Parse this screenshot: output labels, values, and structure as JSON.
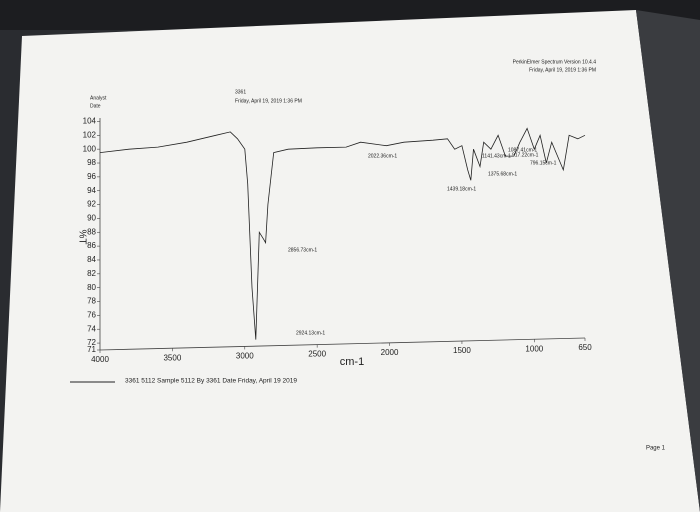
{
  "chart_data": {
    "type": "line",
    "header": [
      "PerkinElmer Spectrum Version 10.4.4",
      "Friday, April 19, 2019 1:36 PM"
    ],
    "analyst_label": "Analyst",
    "date_label": "Date",
    "analyst": "3361",
    "date": "Friday, April 19, 2019 1:36 PM",
    "ylabel": "%T",
    "xlabel": "cm-1",
    "footer": "Page 1",
    "x": [
      4000,
      3800,
      3600,
      3400,
      3200,
      3100,
      3050,
      3000,
      2980,
      2950,
      2924,
      2900,
      2870,
      2856,
      2840,
      2800,
      2700,
      2500,
      2300,
      2200,
      2022,
      1900,
      1700,
      1600,
      1550,
      1500,
      1460,
      1439,
      1420,
      1375,
      1350,
      1300,
      1250,
      1200,
      1141,
      1100,
      1087,
      1050,
      1000,
      960,
      917,
      880,
      800,
      796,
      760,
      700,
      650
    ],
    "series": [
      {
        "name": "3361 5112   Sample 5112 By 3361 Date Friday, April 19 2019",
        "color": "#222222",
        "values": [
          99.5,
          100,
          100.3,
          101,
          102,
          102.5,
          101.5,
          100,
          95,
          80,
          72.5,
          88,
          87,
          86.5,
          92,
          99.5,
          100,
          100.2,
          100.3,
          101,
          100.5,
          101,
          101.3,
          101.5,
          100,
          100.5,
          97,
          95.5,
          100,
          97.5,
          101,
          100,
          102,
          99,
          99,
          101,
          101.5,
          103,
          100,
          102,
          98,
          101,
          97,
          97.5,
          102,
          101.5,
          102
        ]
      }
    ],
    "annotations": [
      "2924.13cm-1",
      "2856.73cm-1",
      "2022.36cm-1",
      "1439.18cm-1",
      "1375.68cm-1",
      "1087.41cm-1",
      "1141.43cm-1",
      "917.22cm-1",
      "796.15cm-1"
    ],
    "xlim": [
      4000,
      650
    ],
    "ylim": [
      71,
      104.5
    ],
    "xticks": [
      4000,
      3500,
      3000,
      2500,
      2000,
      1500,
      1000,
      650
    ],
    "yticks": [
      71,
      72,
      74,
      76,
      78,
      80,
      82,
      84,
      86,
      88,
      90,
      92,
      94,
      96,
      98,
      100,
      102,
      104
    ]
  }
}
